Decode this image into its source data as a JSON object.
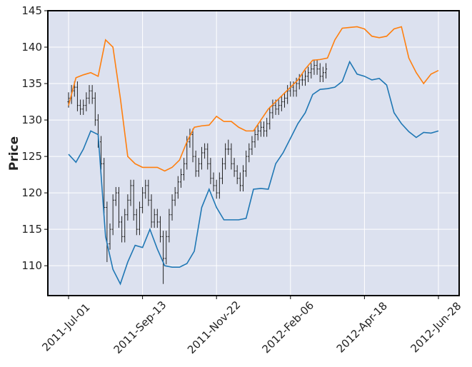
{
  "chart_data": {
    "type": "ohlc",
    "ylabel": "Price",
    "xlim": [
      -14,
      264
    ],
    "ylim": [
      105.9,
      145
    ],
    "yticks": [
      110,
      115,
      120,
      125,
      130,
      135,
      140,
      145
    ],
    "xticks": [
      {
        "value": 0,
        "label": "2011-Jul-01"
      },
      {
        "value": 50,
        "label": "2011-Sep-13"
      },
      {
        "value": 100,
        "label": "2011-Nov-22"
      },
      {
        "value": 150,
        "label": "2012-Feb-06"
      },
      {
        "value": 200,
        "label": "2012-Apr-18"
      },
      {
        "value": 250,
        "label": "2012-Jun-28"
      }
    ],
    "grid": true,
    "background": "#dce1ef",
    "ohlc": {
      "color": "#222222",
      "x": [
        0,
        2,
        4,
        6,
        8,
        10,
        12,
        14,
        16,
        18,
        20,
        22,
        24,
        26,
        28,
        30,
        32,
        34,
        36,
        38,
        40,
        42,
        44,
        46,
        48,
        50,
        52,
        54,
        56,
        58,
        60,
        62,
        64,
        66,
        68,
        70,
        72,
        74,
        76,
        78,
        80,
        82,
        84,
        86,
        88,
        90,
        92,
        94,
        96,
        98,
        100,
        102,
        104,
        106,
        108,
        110,
        112,
        114,
        116,
        118,
        120,
        122,
        124,
        126,
        128,
        130,
        132,
        134,
        136,
        138,
        140,
        142,
        144,
        146,
        148,
        150,
        152,
        154,
        156,
        158,
        160,
        162,
        164,
        166,
        168,
        170,
        172,
        174
      ],
      "open": [
        132.5,
        133,
        134,
        134.5,
        132,
        131.5,
        132,
        133,
        134,
        133,
        130,
        127,
        124,
        118,
        113,
        115,
        119,
        120,
        116,
        114,
        117,
        119,
        121,
        117,
        115,
        118,
        120,
        121,
        119,
        116,
        117,
        116,
        114,
        111,
        114,
        117,
        119,
        120,
        121.5,
        122.5,
        124,
        127,
        128,
        125,
        123,
        124,
        125.5,
        126,
        124,
        122,
        121,
        120,
        122,
        124,
        126,
        126,
        124,
        123,
        122,
        121,
        123,
        125,
        126,
        127,
        128,
        128.5,
        129,
        128.5,
        129.5,
        131,
        132,
        131.5,
        132,
        132.5,
        133,
        134,
        134.5,
        134,
        135,
        135.5,
        135.5,
        136,
        136.5,
        137,
        137.5,
        137,
        136,
        136.5
      ],
      "high": [
        133.8,
        134.8,
        135.3,
        135.3,
        132.8,
        132.8,
        133.8,
        134.8,
        134.8,
        133.8,
        130.8,
        127.8,
        124.8,
        118.8,
        115.8,
        119.8,
        120.8,
        120.8,
        116.8,
        117.8,
        119.8,
        121.8,
        121.8,
        117.8,
        118.8,
        120.8,
        121.8,
        121.8,
        119.8,
        117.8,
        117.8,
        116.8,
        114.8,
        114.8,
        117.8,
        119.8,
        120.8,
        122.3,
        123.3,
        124.8,
        127.8,
        128.8,
        128.8,
        125.8,
        124.8,
        126.3,
        126.8,
        126.8,
        124.8,
        122.8,
        121.8,
        122.8,
        124.8,
        126.8,
        127.3,
        126.8,
        124.8,
        123.8,
        122.8,
        123.8,
        125.8,
        126.8,
        127.8,
        128.8,
        129.3,
        129.8,
        129.8,
        130.3,
        131.8,
        132.8,
        132.8,
        132.8,
        133.3,
        133.8,
        134.8,
        135.3,
        135.3,
        135.8,
        136.3,
        136.3,
        136.8,
        137.3,
        137.8,
        138.3,
        138.3,
        137.8,
        137.3,
        137.8
      ],
      "low": [
        131.7,
        132.2,
        133.2,
        131.2,
        130.7,
        130.7,
        131.2,
        132.2,
        132.2,
        129.2,
        126.2,
        123.2,
        117.2,
        110.5,
        112.2,
        114.2,
        118.2,
        115.2,
        113.2,
        113.2,
        116.2,
        118.2,
        116.2,
        114.2,
        114.2,
        117.2,
        119.2,
        118.2,
        115.2,
        115.2,
        115.2,
        113.2,
        107.5,
        110.2,
        113.2,
        116.2,
        118.2,
        119.2,
        120.7,
        121.7,
        123.2,
        126.2,
        124.2,
        122.2,
        122.2,
        123.2,
        124.7,
        123.2,
        121.2,
        120.2,
        119.2,
        119.2,
        121.2,
        123.2,
        125.2,
        123.2,
        122.2,
        121.2,
        120.2,
        120.2,
        122.2,
        124.2,
        125.2,
        126.2,
        127.2,
        127.7,
        127.7,
        127.7,
        128.7,
        130.2,
        130.7,
        130.7,
        131.2,
        131.7,
        132.2,
        133.2,
        133.2,
        133.2,
        134.2,
        134.7,
        134.7,
        135.2,
        135.7,
        136.2,
        136.2,
        135.2,
        135.2,
        135.7
      ],
      "close": [
        133,
        134,
        134.5,
        132,
        131.5,
        132,
        133,
        134,
        133,
        130,
        127,
        124,
        118,
        113,
        115,
        119,
        120,
        116,
        114,
        117,
        119,
        121,
        117,
        115,
        118,
        120,
        121,
        119,
        116,
        117,
        116,
        114,
        111,
        114,
        117,
        119,
        120,
        121.5,
        122.5,
        124,
        127,
        128,
        125,
        123,
        124,
        125.5,
        126,
        124,
        122,
        121,
        120,
        122,
        124,
        126,
        126,
        124,
        123,
        122,
        121,
        123,
        125,
        126,
        127,
        128,
        128.5,
        129,
        128.5,
        129.5,
        131,
        132,
        131.5,
        132,
        132.5,
        133,
        134,
        134.5,
        134,
        135,
        135.5,
        135.5,
        136,
        136.5,
        137,
        137.5,
        137,
        136,
        136.5,
        137
      ]
    },
    "lines": [
      {
        "color": "#ff7f0e",
        "x": [
          0,
          5,
          10,
          15,
          20,
          25,
          30,
          35,
          40,
          45,
          50,
          55,
          60,
          65,
          70,
          75,
          80,
          85,
          90,
          95,
          100,
          105,
          110,
          115,
          120,
          125,
          130,
          135,
          140,
          145,
          150,
          155,
          160,
          165,
          170,
          175,
          180,
          185,
          190,
          195,
          200,
          205,
          210,
          215,
          220,
          225,
          230,
          235,
          240,
          245,
          250
        ],
        "values": [
          132,
          135.8,
          136.2,
          136.5,
          136,
          141,
          140,
          133,
          125,
          124,
          123.5,
          123.5,
          123.5,
          123,
          123.5,
          124.5,
          127,
          129,
          129.2,
          129.3,
          130.5,
          129.8,
          129.8,
          129,
          128.5,
          128.5,
          130,
          131.5,
          132.5,
          133.5,
          134.5,
          135.5,
          137,
          138.2,
          138.3,
          138.5,
          141,
          142.6,
          142.7,
          142.8,
          142.5,
          141.5,
          141.3,
          141.5,
          142.5,
          142.8,
          138.5,
          136.5,
          135,
          136.3,
          136.8
        ]
      },
      {
        "color": "#1f77b4",
        "x": [
          0,
          5,
          10,
          15,
          20,
          25,
          30,
          35,
          40,
          45,
          50,
          55,
          60,
          65,
          70,
          75,
          80,
          85,
          90,
          95,
          100,
          105,
          110,
          115,
          120,
          125,
          130,
          135,
          140,
          145,
          150,
          155,
          160,
          165,
          170,
          175,
          180,
          185,
          190,
          195,
          200,
          205,
          210,
          215,
          220,
          225,
          230,
          235,
          240,
          245,
          250
        ],
        "values": [
          125.3,
          124.2,
          126,
          128.5,
          128,
          114,
          109.5,
          107.5,
          110.5,
          112.8,
          112.5,
          115,
          112.3,
          110,
          109.8,
          109.8,
          110.3,
          112,
          118,
          120.5,
          118,
          116.3,
          116.3,
          116.3,
          116.5,
          120.5,
          120.6,
          120.5,
          124,
          125.5,
          127.5,
          129.5,
          131,
          133.5,
          134.2,
          134.3,
          134.5,
          135.3,
          138,
          136.3,
          136,
          135.5,
          135.7,
          134.8,
          131,
          129.5,
          128.4,
          127.6,
          128.3,
          128.2,
          128.5
        ]
      }
    ]
  }
}
